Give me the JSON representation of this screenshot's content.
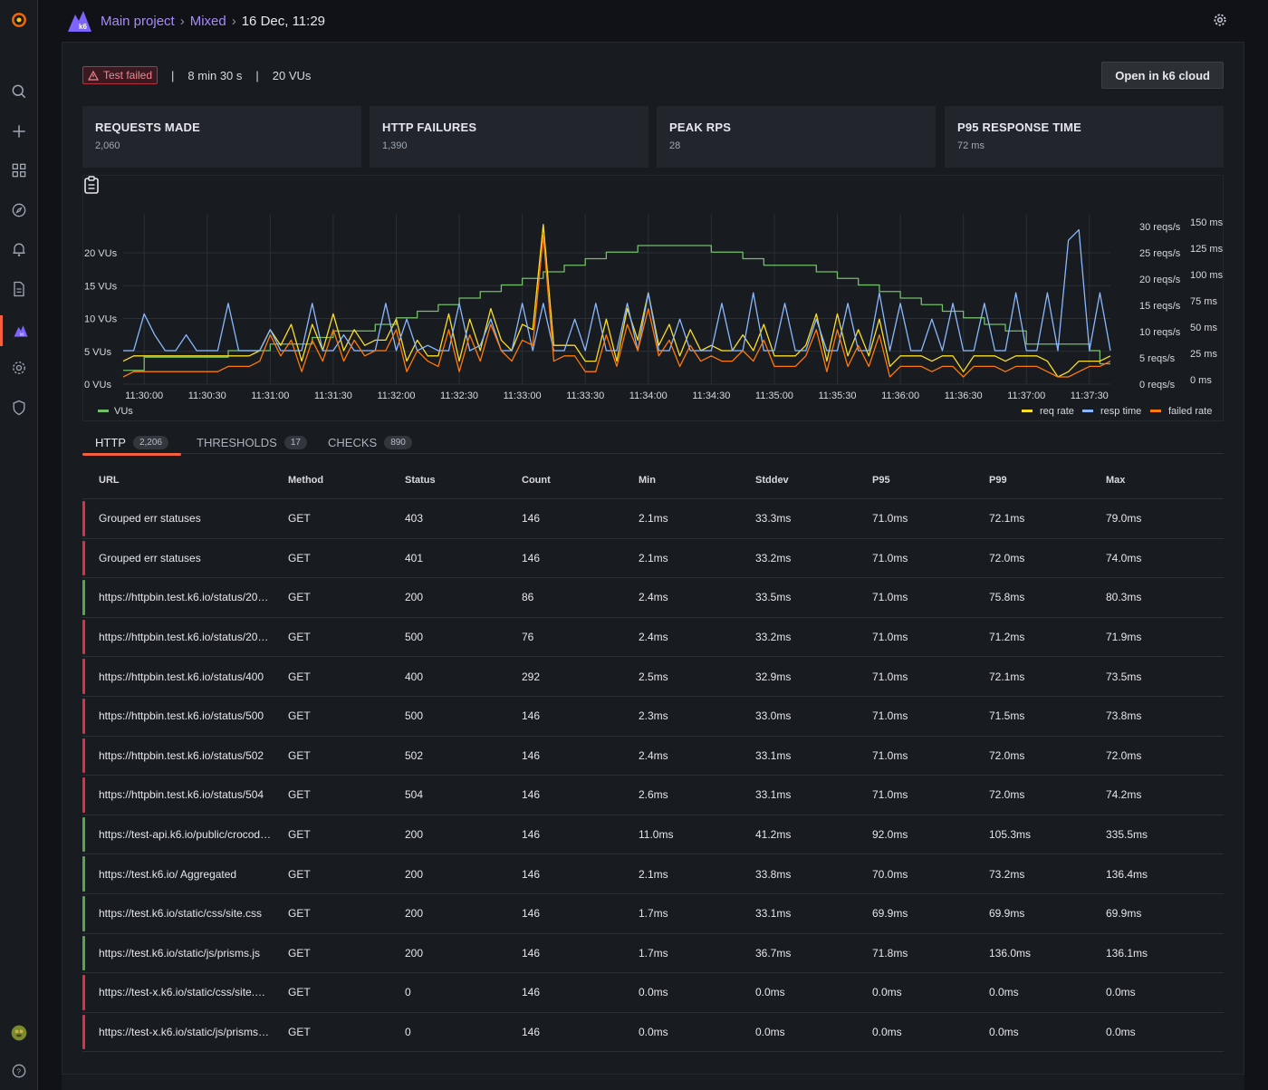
{
  "breadcrumb": {
    "project": "Main project",
    "test": "Mixed",
    "run": "16 Dec, 11:29",
    "sep": "›"
  },
  "run_status": {
    "badge": "Test failed",
    "duration": "8 min 30 s",
    "vus": "20 VUs",
    "separator": "|"
  },
  "open_cloud_label": "Open in k6 cloud",
  "stats": [
    {
      "label": "REQUESTS MADE",
      "value": "2,060"
    },
    {
      "label": "HTTP FAILURES",
      "value": "1,390"
    },
    {
      "label": "PEAK RPS",
      "value": "28"
    },
    {
      "label": "P95 RESPONSE TIME",
      "value": "72 ms"
    }
  ],
  "chart_data": {
    "type": "line",
    "x": [
      "11:29:50",
      "11:29:55",
      "11:30:00",
      "11:30:05",
      "11:30:10",
      "11:30:15",
      "11:30:20",
      "11:30:25",
      "11:30:30",
      "11:30:35",
      "11:30:40",
      "11:30:45",
      "11:30:50",
      "11:30:55",
      "11:31:00",
      "11:31:05",
      "11:31:10",
      "11:31:15",
      "11:31:20",
      "11:31:25",
      "11:31:30",
      "11:31:35",
      "11:31:40",
      "11:31:45",
      "11:31:50",
      "11:31:55",
      "11:32:00",
      "11:32:05",
      "11:32:10",
      "11:32:15",
      "11:32:20",
      "11:32:25",
      "11:32:30",
      "11:32:35",
      "11:32:40",
      "11:32:45",
      "11:32:50",
      "11:32:55",
      "11:33:00",
      "11:33:05",
      "11:33:10",
      "11:33:15",
      "11:33:20",
      "11:33:25",
      "11:33:30",
      "11:33:35",
      "11:33:40",
      "11:33:45",
      "11:33:50",
      "11:33:55",
      "11:34:00",
      "11:34:05",
      "11:34:10",
      "11:34:15",
      "11:34:20",
      "11:34:25",
      "11:34:30",
      "11:34:35",
      "11:34:40",
      "11:34:45",
      "11:34:50",
      "11:34:55",
      "11:35:00",
      "11:35:05",
      "11:35:10",
      "11:35:15",
      "11:35:20",
      "11:35:25",
      "11:35:30",
      "11:35:35",
      "11:35:40",
      "11:35:45",
      "11:35:50",
      "11:35:55",
      "11:36:00",
      "11:36:05",
      "11:36:10",
      "11:36:15",
      "11:36:20",
      "11:36:25",
      "11:36:30",
      "11:36:35",
      "11:36:40",
      "11:36:45",
      "11:36:50",
      "11:36:55",
      "11:37:00",
      "11:37:05",
      "11:37:10",
      "11:37:15",
      "11:37:20",
      "11:37:25",
      "11:37:30",
      "11:37:35",
      "11:37:40"
    ],
    "series": [
      {
        "name": "VUs",
        "axis": "left",
        "color": "#73bf69",
        "values": [
          1,
          1,
          3,
          3,
          3,
          3,
          3,
          3,
          3,
          3,
          4,
          4,
          4,
          4,
          5,
          5,
          5,
          5,
          6,
          6,
          7,
          7,
          7,
          7,
          8,
          8,
          9,
          9,
          10,
          10,
          11,
          11,
          12,
          12,
          13,
          13,
          14,
          14,
          15,
          15,
          16,
          16,
          17,
          17,
          18,
          18,
          19,
          19,
          19,
          20,
          20,
          20,
          20,
          20,
          20,
          20,
          19,
          19,
          19,
          18,
          18,
          17,
          17,
          17,
          17,
          17,
          16,
          16,
          15,
          15,
          14,
          14,
          13,
          13,
          12,
          12,
          11,
          11,
          10,
          10,
          9,
          9,
          8,
          8,
          7,
          7,
          5,
          5,
          5,
          5,
          5,
          5,
          4,
          2,
          2
        ]
      },
      {
        "name": "req rate",
        "axis": "right-reqs",
        "color": "#fade2a",
        "values": [
          3,
          4,
          4,
          4,
          4,
          4,
          4,
          4,
          4,
          4,
          4,
          4,
          4,
          5,
          9,
          6,
          10,
          3,
          10,
          5,
          12,
          5,
          9,
          6,
          7,
          7,
          11,
          3,
          7,
          4,
          4,
          12,
          3,
          11,
          5,
          13,
          7,
          5,
          10,
          9,
          29,
          6,
          6,
          6,
          3,
          3,
          11,
          3,
          13,
          7,
          16,
          6,
          10,
          4,
          9,
          5,
          6,
          5,
          5,
          8,
          5,
          10,
          4,
          4,
          4,
          6,
          12,
          3,
          12,
          4,
          9,
          4,
          11,
          2,
          4,
          4,
          4,
          3,
          4,
          4,
          1,
          4,
          4,
          4,
          3,
          4,
          4,
          4,
          3,
          0,
          1,
          3,
          3,
          3,
          4
        ]
      },
      {
        "name": "resp time",
        "axis": "right-ms",
        "color": "#8ab8ff",
        "values": [
          25,
          25,
          60,
          40,
          25,
          25,
          40,
          25,
          25,
          25,
          70,
          25,
          25,
          25,
          45,
          25,
          25,
          25,
          70,
          25,
          25,
          40,
          25,
          25,
          25,
          70,
          25,
          55,
          25,
          30,
          25,
          25,
          70,
          25,
          30,
          55,
          25,
          25,
          70,
          25,
          70,
          25,
          25,
          55,
          25,
          70,
          25,
          25,
          70,
          25,
          80,
          25,
          25,
          55,
          25,
          25,
          25,
          70,
          25,
          25,
          80,
          25,
          25,
          70,
          25,
          25,
          55,
          25,
          25,
          70,
          25,
          25,
          80,
          25,
          70,
          25,
          25,
          55,
          25,
          70,
          25,
          25,
          70,
          25,
          25,
          80,
          25,
          25,
          80,
          25,
          130,
          140,
          25,
          80,
          25
        ]
      },
      {
        "name": "failed rate",
        "axis": "right-reqs",
        "color": "#ff780a",
        "values": [
          0,
          1,
          1,
          1,
          1,
          1,
          1,
          1,
          1,
          1,
          2,
          2,
          2,
          3,
          8,
          4,
          7,
          1,
          7,
          3,
          9,
          3,
          7,
          4,
          5,
          5,
          9,
          1,
          5,
          3,
          2,
          9,
          1,
          8,
          3,
          10,
          5,
          3,
          7,
          6,
          27,
          3,
          4,
          4,
          1,
          1,
          8,
          2,
          10,
          5,
          13,
          4,
          7,
          2,
          6,
          3,
          4,
          3,
          3,
          5,
          3,
          7,
          2,
          2,
          2,
          4,
          9,
          1,
          9,
          2,
          6,
          2,
          8,
          0,
          2,
          2,
          2,
          1,
          2,
          2,
          0,
          2,
          2,
          2,
          1,
          2,
          2,
          2,
          1,
          0,
          0,
          1,
          2,
          2,
          3
        ]
      }
    ],
    "x_ticks": [
      "11:30:00",
      "11:30:30",
      "11:31:00",
      "11:31:30",
      "11:32:00",
      "11:32:30",
      "11:33:00",
      "11:33:30",
      "11:34:00",
      "11:34:30",
      "11:35:00",
      "11:35:30",
      "11:36:00",
      "11:36:30",
      "11:37:00",
      "11:37:30"
    ],
    "y_left_ticks": [
      "0 VUs",
      "5 VUs",
      "10 VUs",
      "15 VUs",
      "20 VUs"
    ],
    "y_left_range": [
      0,
      24
    ],
    "y_right_reqs_ticks": [
      "0 reqs/s",
      "5 reqs/s",
      "10 reqs/s",
      "15 reqs/s",
      "20 reqs/s",
      "25 reqs/s",
      "30 reqs/s"
    ],
    "y_right_reqs_range": [
      0,
      30
    ],
    "y_right_ms_ticks": [
      "0 ms",
      "25 ms",
      "50 ms",
      "75 ms",
      "100 ms",
      "125 ms",
      "150 ms"
    ],
    "y_right_ms_range": [
      0,
      150
    ],
    "legend_left": "VUs",
    "legend_right": [
      "req rate",
      "resp time",
      "failed rate"
    ],
    "grid": true
  },
  "tabs": [
    {
      "label": "HTTP",
      "count": "2,206"
    },
    {
      "label": "THRESHOLDS",
      "count": "17"
    },
    {
      "label": "CHECKS",
      "count": "890"
    }
  ],
  "table": {
    "headers": [
      "URL",
      "Method",
      "Status",
      "Count",
      "Min",
      "Stddev",
      "P95",
      "P99",
      "Max"
    ],
    "rows": [
      {
        "ok": false,
        "cells": [
          "Grouped err statuses",
          "GET",
          "403",
          "146",
          "2.1ms",
          "33.3ms",
          "71.0ms",
          "72.1ms",
          "79.0ms"
        ]
      },
      {
        "ok": false,
        "cells": [
          "Grouped err statuses",
          "GET",
          "401",
          "146",
          "2.1ms",
          "33.2ms",
          "71.0ms",
          "72.0ms",
          "74.0ms"
        ]
      },
      {
        "ok": true,
        "cells": [
          "https://httpbin.test.k6.io/status/20…",
          "GET",
          "200",
          "86",
          "2.4ms",
          "33.5ms",
          "71.0ms",
          "75.8ms",
          "80.3ms"
        ]
      },
      {
        "ok": false,
        "cells": [
          "https://httpbin.test.k6.io/status/20…",
          "GET",
          "500",
          "76",
          "2.4ms",
          "33.2ms",
          "71.0ms",
          "71.2ms",
          "71.9ms"
        ]
      },
      {
        "ok": false,
        "cells": [
          "https://httpbin.test.k6.io/status/400",
          "GET",
          "400",
          "292",
          "2.5ms",
          "32.9ms",
          "71.0ms",
          "72.1ms",
          "73.5ms"
        ]
      },
      {
        "ok": false,
        "cells": [
          "https://httpbin.test.k6.io/status/500",
          "GET",
          "500",
          "146",
          "2.3ms",
          "33.0ms",
          "71.0ms",
          "71.5ms",
          "73.8ms"
        ]
      },
      {
        "ok": false,
        "cells": [
          "https://httpbin.test.k6.io/status/502",
          "GET",
          "502",
          "146",
          "2.4ms",
          "33.1ms",
          "71.0ms",
          "72.0ms",
          "72.0ms"
        ]
      },
      {
        "ok": false,
        "cells": [
          "https://httpbin.test.k6.io/status/504",
          "GET",
          "504",
          "146",
          "2.6ms",
          "33.1ms",
          "71.0ms",
          "72.0ms",
          "74.2ms"
        ]
      },
      {
        "ok": true,
        "cells": [
          "https://test-api.k6.io/public/crocod…",
          "GET",
          "200",
          "146",
          "11.0ms",
          "41.2ms",
          "92.0ms",
          "105.3ms",
          "335.5ms"
        ]
      },
      {
        "ok": true,
        "cells": [
          "https://test.k6.io/ Aggregated",
          "GET",
          "200",
          "146",
          "2.1ms",
          "33.8ms",
          "70.0ms",
          "73.2ms",
          "136.4ms"
        ]
      },
      {
        "ok": true,
        "cells": [
          "https://test.k6.io/static/css/site.css",
          "GET",
          "200",
          "146",
          "1.7ms",
          "33.1ms",
          "69.9ms",
          "69.9ms",
          "69.9ms"
        ]
      },
      {
        "ok": true,
        "cells": [
          "https://test.k6.io/static/js/prisms.js",
          "GET",
          "200",
          "146",
          "1.7ms",
          "36.7ms",
          "71.8ms",
          "136.0ms",
          "136.1ms"
        ]
      },
      {
        "ok": false,
        "cells": [
          "https://test-x.k6.io/static/css/site.…",
          "GET",
          "0",
          "146",
          "0.0ms",
          "0.0ms",
          "0.0ms",
          "0.0ms",
          "0.0ms"
        ]
      },
      {
        "ok": false,
        "cells": [
          "https://test-x.k6.io/static/js/prisms…",
          "GET",
          "0",
          "146",
          "0.0ms",
          "0.0ms",
          "0.0ms",
          "0.0ms",
          "0.0ms"
        ]
      }
    ]
  },
  "colors": {
    "ok": "#56a64b",
    "fail": "#e02f44",
    "accent": "#f55f3e",
    "link": "#a78bfa"
  },
  "icons": {
    "sidebar": [
      "grafana-logo-icon",
      "search-icon",
      "plus-icon",
      "dashboards-icon",
      "explore-icon",
      "alerting-icon",
      "reports-icon",
      "k6-icon",
      "gear-icon",
      "shield-icon",
      "avatar",
      "help-icon"
    ]
  }
}
